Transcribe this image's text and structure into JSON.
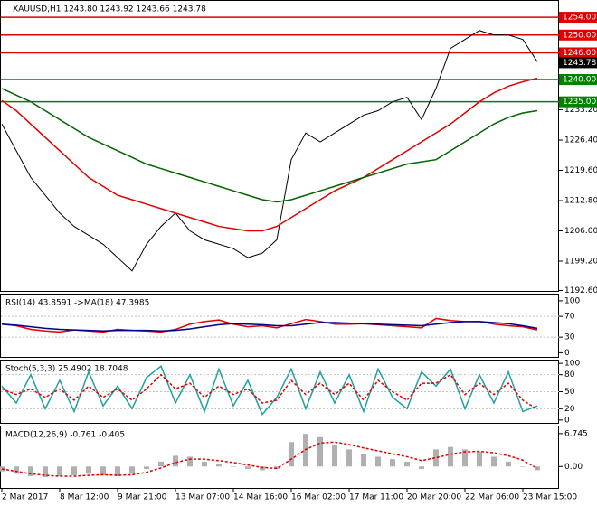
{
  "chart_data": [
    {
      "type": "line",
      "title": "XAUUSD,H1  1243.80 1243.92 1243.66 1243.78",
      "categories": [
        "2 Mar 2017",
        null,
        null,
        null,
        "8 Mar 12:00",
        null,
        null,
        null,
        "9 Mar 21:00",
        null,
        null,
        null,
        "13 Mar 07:00",
        null,
        null,
        null,
        "14 Mar 16:00",
        null,
        null,
        null,
        "16 Mar 02:00",
        null,
        null,
        null,
        "17 Mar 11:00",
        null,
        null,
        null,
        "20 Mar 20:00",
        null,
        null,
        null,
        "22 Mar 06:00",
        null,
        null,
        null,
        "23 Mar 15:00",
        null
      ],
      "series": [
        {
          "color": "#000000",
          "values": [
            1230,
            1224,
            1218,
            1214,
            1210,
            1207,
            1205,
            1203,
            1200,
            1197,
            1203,
            1207,
            1210,
            1206,
            1204,
            1203,
            1202,
            1200,
            1201,
            1204,
            1222,
            1228,
            1226,
            1228,
            1230,
            1232,
            1233,
            1235,
            1236,
            1231,
            1238,
            1247,
            1249,
            1251,
            1250,
            1250,
            1249,
            1244
          ]
        },
        {
          "color": "#e00000",
          "values": [
            1235.3,
            1233,
            1230,
            1227,
            1224,
            1221,
            1218,
            1216,
            1214,
            1213,
            1212,
            1211,
            1210,
            1209,
            1208,
            1207,
            1206.5,
            1206,
            1206,
            1207,
            1209,
            1211,
            1213,
            1215,
            1216.5,
            1218,
            1220,
            1222,
            1224,
            1226,
            1228,
            1230,
            1232.5,
            1235,
            1237,
            1238.5,
            1239.5,
            1240.3
          ]
        },
        {
          "color": "#006400",
          "values": [
            1238,
            1236.5,
            1235,
            1233,
            1231,
            1229,
            1227,
            1225.5,
            1224,
            1222.5,
            1221,
            1220,
            1219,
            1218,
            1217,
            1216,
            1215,
            1214,
            1213,
            1212.5,
            1213,
            1214,
            1215,
            1216,
            1217,
            1218,
            1219,
            1220,
            1221,
            1221.5,
            1222,
            1224,
            1226,
            1228,
            1230,
            1231.5,
            1232.5,
            1233
          ]
        }
      ],
      "levels": [
        {
          "value": 1254,
          "label": "1254.00",
          "color": "#e00000"
        },
        {
          "value": 1250,
          "label": "1250.00",
          "color": "#e00000"
        },
        {
          "value": 1246,
          "label": "1246.00",
          "color": "#e00000"
        },
        {
          "value": 1243.78,
          "label": "1243.78",
          "color": "#000000"
        },
        {
          "value": 1240,
          "label": "1240.00",
          "color": "#008000"
        },
        {
          "value": 1235,
          "label": "1235.00",
          "color": "#008000"
        }
      ],
      "ylim": [
        1192.5,
        1257.67
      ],
      "yticks": [
        {
          "value": 1233.2,
          "label": "1233.20"
        },
        {
          "value": 1226.4,
          "label": "1226.40"
        },
        {
          "value": 1219.6,
          "label": "1219.60"
        },
        {
          "value": 1212.8,
          "label": "1212.80"
        },
        {
          "value": 1206,
          "label": "1206.00"
        },
        {
          "value": 1199.2,
          "label": "1199.20"
        },
        {
          "value": 1192.6,
          "label": "1192.60"
        }
      ]
    },
    {
      "type": "line",
      "title": "RSI(14) 43.8591  ->MA(18) 47.3985",
      "series": [
        {
          "color": "#e00000",
          "values": [
            55,
            52,
            45,
            42,
            40,
            44,
            42,
            40,
            45,
            43,
            42,
            40,
            45,
            55,
            60,
            63,
            55,
            50,
            52,
            48,
            56,
            64,
            60,
            55,
            55,
            56,
            54,
            52,
            50,
            48,
            66,
            62,
            60,
            60,
            55,
            52,
            50,
            44
          ]
        },
        {
          "color": "#00008b",
          "values": [
            55,
            53,
            50,
            47,
            45,
            44,
            43,
            42,
            43,
            43,
            43,
            42,
            43,
            46,
            50,
            54,
            56,
            55,
            54,
            52,
            52,
            55,
            58,
            58,
            57,
            56,
            55,
            54,
            53,
            52,
            55,
            58,
            60,
            60,
            58,
            56,
            52,
            47
          ]
        }
      ],
      "ylim": [
        -8,
        112
      ],
      "yticks": [
        100,
        70,
        30,
        0
      ]
    },
    {
      "type": "line",
      "title": "Stoch(5,3,3) 25.4902 18.7048",
      "series": [
        {
          "color": "#20a0a0",
          "values": [
            60,
            30,
            80,
            20,
            70,
            15,
            85,
            25,
            60,
            20,
            75,
            95,
            30,
            80,
            15,
            90,
            25,
            70,
            10,
            40,
            90,
            20,
            85,
            30,
            80,
            15,
            90,
            40,
            20,
            85,
            60,
            90,
            20,
            80,
            30,
            85,
            15,
            25
          ]
        },
        {
          "color": "#e00000",
          "dashed": true,
          "values": [
            55,
            45,
            55,
            40,
            55,
            35,
            60,
            40,
            55,
            35,
            55,
            80,
            55,
            65,
            40,
            60,
            45,
            55,
            30,
            35,
            70,
            45,
            65,
            45,
            65,
            35,
            70,
            50,
            35,
            65,
            65,
            80,
            45,
            65,
            45,
            65,
            35,
            19
          ]
        }
      ],
      "ylim": [
        -5,
        105
      ],
      "yticks": [
        100,
        80,
        50,
        20,
        0
      ]
    },
    {
      "type": "bar",
      "title": "MACD(12,26,9) -0.761 -0.405",
      "color": "#b0b0b0",
      "values": [
        -1,
        -1.5,
        -2,
        -2.2,
        -2,
        -1.8,
        -1.5,
        -1.8,
        -2,
        -1.5,
        -0.5,
        1,
        2.2,
        2,
        1,
        0.5,
        0,
        -0.5,
        -0.8,
        -0.5,
        5,
        6.7,
        6,
        4.5,
        3.5,
        2.5,
        2,
        1.5,
        1,
        -0.5,
        3.5,
        4,
        3.5,
        3,
        2,
        1,
        0,
        -0.761
      ],
      "series": [
        {
          "color": "#e00000",
          "dashed": true,
          "values": [
            -0.5,
            -1,
            -1.5,
            -1.8,
            -2,
            -2,
            -1.8,
            -1.7,
            -1.8,
            -1.7,
            -1.2,
            -0.3,
            0.8,
            1.5,
            1.5,
            1.2,
            0.8,
            0.3,
            -0.2,
            -0.4,
            1.5,
            3.5,
            4.8,
            5,
            4.5,
            3.8,
            3.2,
            2.6,
            2,
            1.2,
            1.8,
            2.5,
            3,
            3.1,
            2.8,
            2.2,
            1.3,
            -0.405
          ]
        }
      ],
      "ylim": [
        -4.4,
        8.2
      ],
      "yticks": [
        {
          "value": 6.745,
          "label": "6.745"
        },
        {
          "value": 0,
          "label": "0.00"
        }
      ]
    }
  ]
}
